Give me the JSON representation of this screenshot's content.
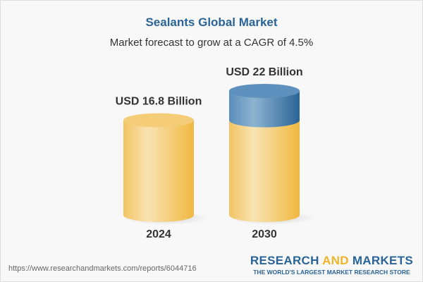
{
  "header": {
    "title": "Sealants Global Market",
    "subtitle": "Market forecast to grow at a CAGR of 4.5%"
  },
  "chart_data": {
    "type": "bar",
    "categories": [
      "2024",
      "2030"
    ],
    "values": [
      16.8,
      22
    ],
    "data_labels": [
      "USD 16.8 Billion",
      "USD 22 Billion"
    ],
    "colors": {
      "base": "#f2c14e",
      "growth": "#2f6fa3"
    }
  },
  "footer": {
    "url": "https://www.researchandmarkets.com/reports/6044716",
    "logo_part1": "RESEARCH ",
    "logo_part2": "AND",
    "logo_part3": " MARKETS",
    "tagline": "THE WORLD'S LARGEST MARKET RESEARCH STORE"
  }
}
